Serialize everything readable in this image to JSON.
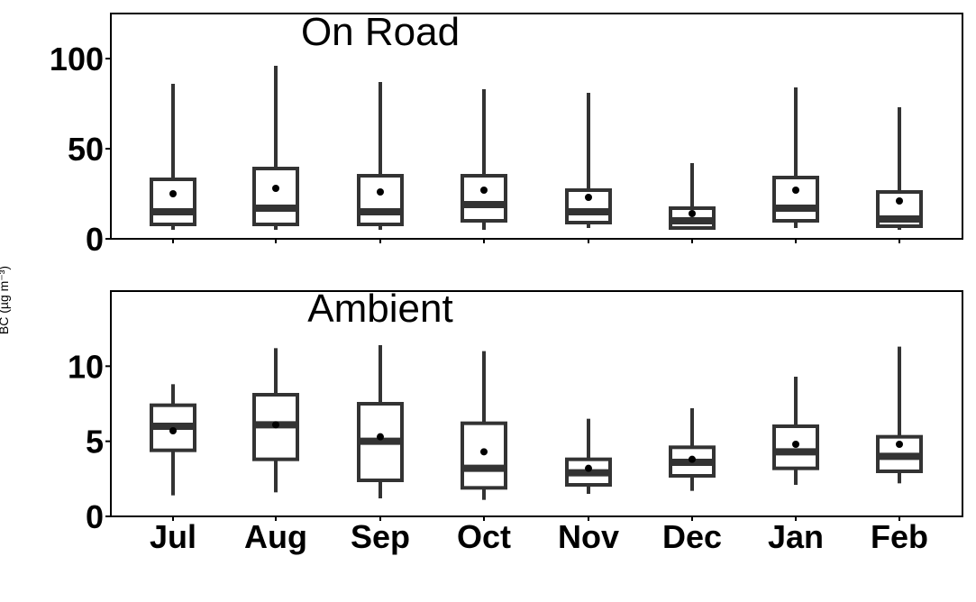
{
  "y_axis_title": "BC (µg m⁻³)",
  "colors": {
    "box": "#333333",
    "mean_point": "#000000",
    "panel_border": "#000000"
  },
  "chart_data": [
    {
      "type": "box",
      "title": "On Road",
      "categories": [
        "Jul",
        "Aug",
        "Sep",
        "Oct",
        "Nov",
        "Dec",
        "Jan",
        "Feb"
      ],
      "ylim": [
        0,
        125
      ],
      "yticks": [
        0,
        50,
        100
      ],
      "series": [
        {
          "min": 5,
          "q1": 8,
          "median": 15,
          "q3": 33,
          "max": 86,
          "mean": 25
        },
        {
          "min": 5,
          "q1": 8,
          "median": 17,
          "q3": 39,
          "max": 96,
          "mean": 28
        },
        {
          "min": 5,
          "q1": 8,
          "median": 15,
          "q3": 35,
          "max": 87,
          "mean": 26
        },
        {
          "min": 5,
          "q1": 10,
          "median": 19,
          "q3": 35,
          "max": 83,
          "mean": 27
        },
        {
          "min": 6,
          "q1": 9,
          "median": 15,
          "q3": 27,
          "max": 81,
          "mean": 23
        },
        {
          "min": 5,
          "q1": 6,
          "median": 10,
          "q3": 17,
          "max": 42,
          "mean": 14
        },
        {
          "min": 6,
          "q1": 10,
          "median": 17,
          "q3": 34,
          "max": 84,
          "mean": 27
        },
        {
          "min": 5,
          "q1": 7,
          "median": 11,
          "q3": 26,
          "max": 73,
          "mean": 21
        }
      ]
    },
    {
      "type": "box",
      "title": "Ambient",
      "categories": [
        "Jul",
        "Aug",
        "Sep",
        "Oct",
        "Nov",
        "Dec",
        "Jan",
        "Feb"
      ],
      "ylim": [
        0,
        15
      ],
      "yticks": [
        0,
        5,
        10
      ],
      "series": [
        {
          "min": 1.4,
          "q1": 4.4,
          "median": 6.0,
          "q3": 7.4,
          "max": 8.8,
          "mean": 5.7
        },
        {
          "min": 1.6,
          "q1": 3.8,
          "median": 6.1,
          "q3": 8.1,
          "max": 11.2,
          "mean": 6.1
        },
        {
          "min": 1.2,
          "q1": 2.4,
          "median": 5.0,
          "q3": 7.5,
          "max": 11.4,
          "mean": 5.3
        },
        {
          "min": 1.1,
          "q1": 1.9,
          "median": 3.2,
          "q3": 6.2,
          "max": 11.0,
          "mean": 4.3
        },
        {
          "min": 1.5,
          "q1": 2.1,
          "median": 2.9,
          "q3": 3.8,
          "max": 6.5,
          "mean": 3.2
        },
        {
          "min": 1.7,
          "q1": 2.7,
          "median": 3.6,
          "q3": 4.6,
          "max": 7.2,
          "mean": 3.8
        },
        {
          "min": 2.1,
          "q1": 3.2,
          "median": 4.3,
          "q3": 6.0,
          "max": 9.3,
          "mean": 4.8
        },
        {
          "min": 2.2,
          "q1": 3.0,
          "median": 4.0,
          "q3": 5.3,
          "max": 11.3,
          "mean": 4.8
        }
      ]
    }
  ]
}
